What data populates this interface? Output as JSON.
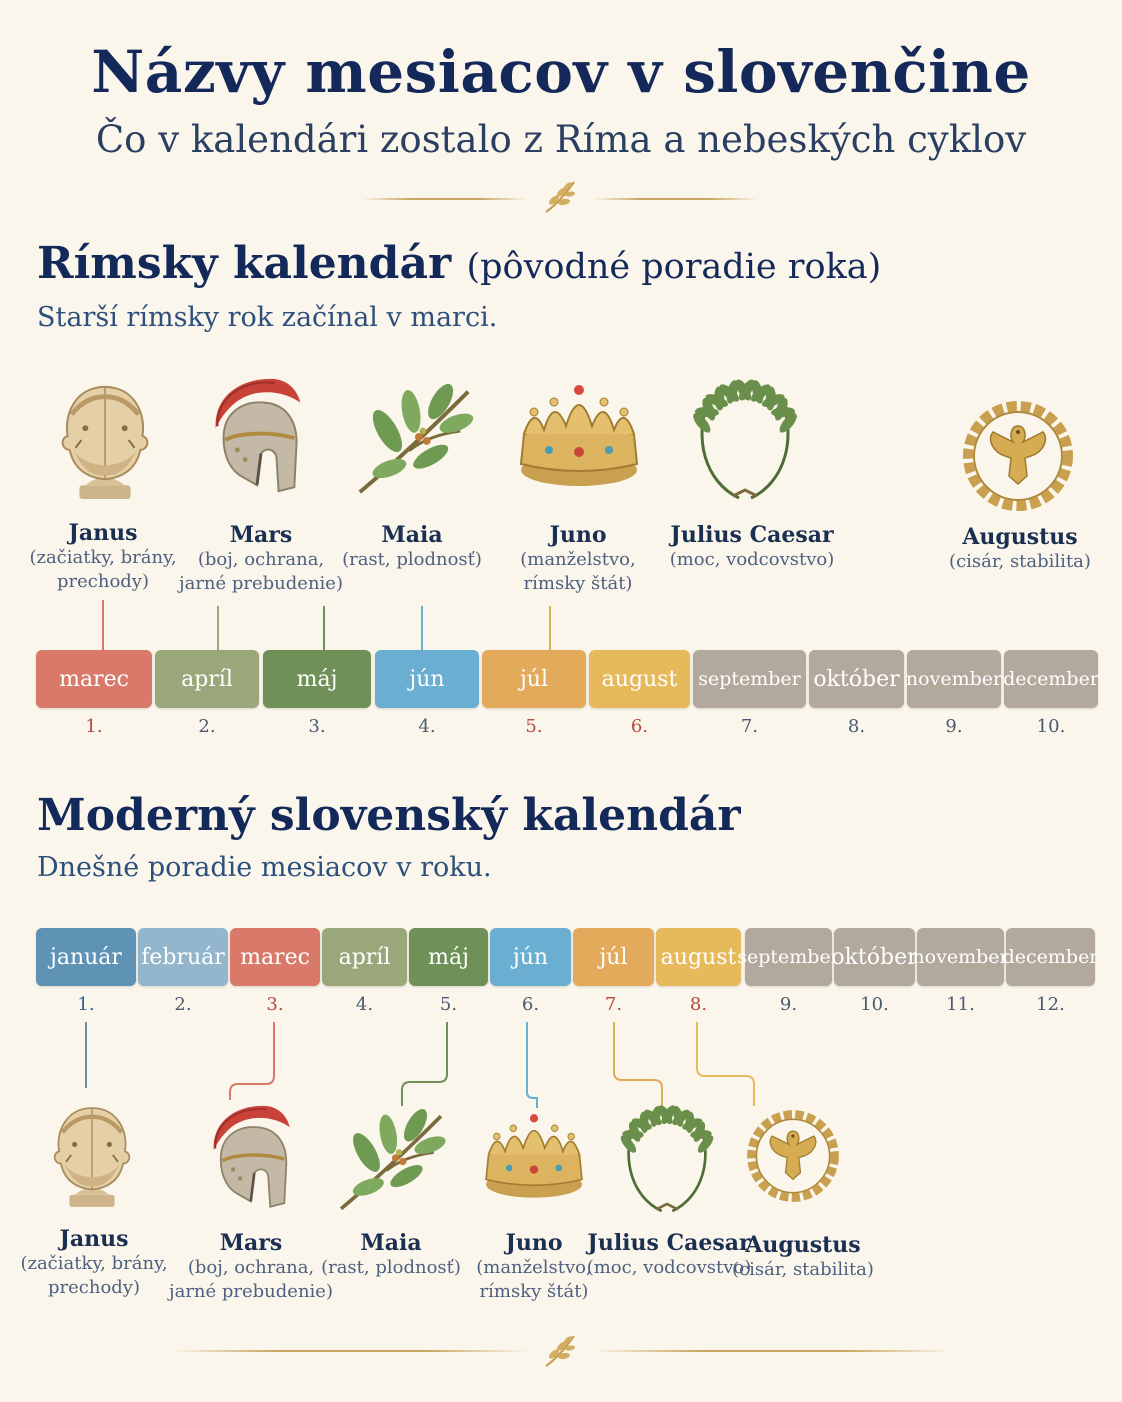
{
  "header": {
    "title": "Názvy mesiacov v slovenčine",
    "subtitle": "Čo v kalendári zostalo z Ríma a nebeských cyklov"
  },
  "roman": {
    "title_main": "Rímsky kalendár",
    "title_paren": "(pôvodné poradie roka)",
    "subtitle": "Starší rímsky rok začínal v marci.",
    "months": [
      {
        "label": "marec",
        "num": "1.",
        "color": "#d9796a"
      },
      {
        "label": "apríl",
        "num": "2.",
        "color": "#9aa77b"
      },
      {
        "label": "máj",
        "num": "3.",
        "color": "#6f9056"
      },
      {
        "label": "jún",
        "num": "4.",
        "color": "#6aaed1"
      },
      {
        "label": "júl",
        "num": "5.",
        "color": "#e3aa5c"
      },
      {
        "label": "august",
        "num": "6.",
        "color": "#e6b95a"
      },
      {
        "label": "september",
        "num": "7.",
        "color": "#b2a89c"
      },
      {
        "label": "október",
        "num": "8.",
        "color": "#b2a89c"
      },
      {
        "label": "november",
        "num": "9.",
        "color": "#b2a89c"
      },
      {
        "label": "december",
        "num": "10.",
        "color": "#b2a89c"
      }
    ],
    "deities": [
      {
        "name": "Janus",
        "desc1": "(začiatky, brány,",
        "desc2": "prechody)",
        "icon": "janus-bust-icon"
      },
      {
        "name": "Mars",
        "desc1": "(boj, ochrana,",
        "desc2": "jarné prebudenie)",
        "icon": "roman-helmet-icon"
      },
      {
        "name": "Maia",
        "desc1": "(rast, plodnosť)",
        "desc2": "",
        "icon": "olive-branch-icon"
      },
      {
        "name": "Juno",
        "desc1": "(manželstvo,",
        "desc2": "rímsky štát)",
        "icon": "crown-icon"
      },
      {
        "name": "Julius Caesar",
        "desc1": "(moc, vodcovstvo)",
        "desc2": "",
        "icon": "laurel-wreath-icon"
      },
      {
        "name": "Augustus",
        "desc1": "(cisár, stabilita)",
        "desc2": "",
        "icon": "eagle-wreath-icon"
      }
    ]
  },
  "modern": {
    "title": "Moderný slovenský kalendár",
    "subtitle": "Dnešné poradie mesiacov v roku.",
    "months": [
      {
        "label": "január",
        "num": "1.",
        "color": "#5f93b6"
      },
      {
        "label": "február",
        "num": "2.",
        "color": "#93b6cd"
      },
      {
        "label": "marec",
        "num": "3.",
        "color": "#d9796a"
      },
      {
        "label": "apríl",
        "num": "4.",
        "color": "#9aa77b"
      },
      {
        "label": "máj",
        "num": "5.",
        "color": "#6f9056"
      },
      {
        "label": "jún",
        "num": "6.",
        "color": "#6aaed1"
      },
      {
        "label": "júl",
        "num": "7.",
        "color": "#e3aa5c"
      },
      {
        "label": "august",
        "num": "8.",
        "color": "#e6b95a"
      },
      {
        "label": "september",
        "num": "9.",
        "color": "#b2a89c"
      },
      {
        "label": "október",
        "num": "10.",
        "color": "#b2a89c"
      },
      {
        "label": "november",
        "num": "11.",
        "color": "#b2a89c"
      },
      {
        "label": "december",
        "num": "12.",
        "color": "#b2a89c"
      }
    ],
    "deities": [
      {
        "name": "Janus",
        "desc1": "(začiatky, brány,",
        "desc2": "prechody)"
      },
      {
        "name": "Mars",
        "desc1": "(boj, ochrana,",
        "desc2": "jarné prebudenie)"
      },
      {
        "name": "Maia",
        "desc1": "(rast, plodnosť)",
        "desc2": ""
      },
      {
        "name": "Juno",
        "desc1": "(manželstvo,",
        "desc2": "rímsky štát)"
      },
      {
        "name": "Julius Caesar",
        "desc1": "(moc, vodcovstvo)",
        "desc2": ""
      },
      {
        "name": "Augustus",
        "desc1": "(cisár, stabilita)",
        "desc2": ""
      }
    ]
  },
  "colors": {
    "background": "#fbf6ec",
    "title": "#14285a",
    "gold": "#c8a45e"
  }
}
